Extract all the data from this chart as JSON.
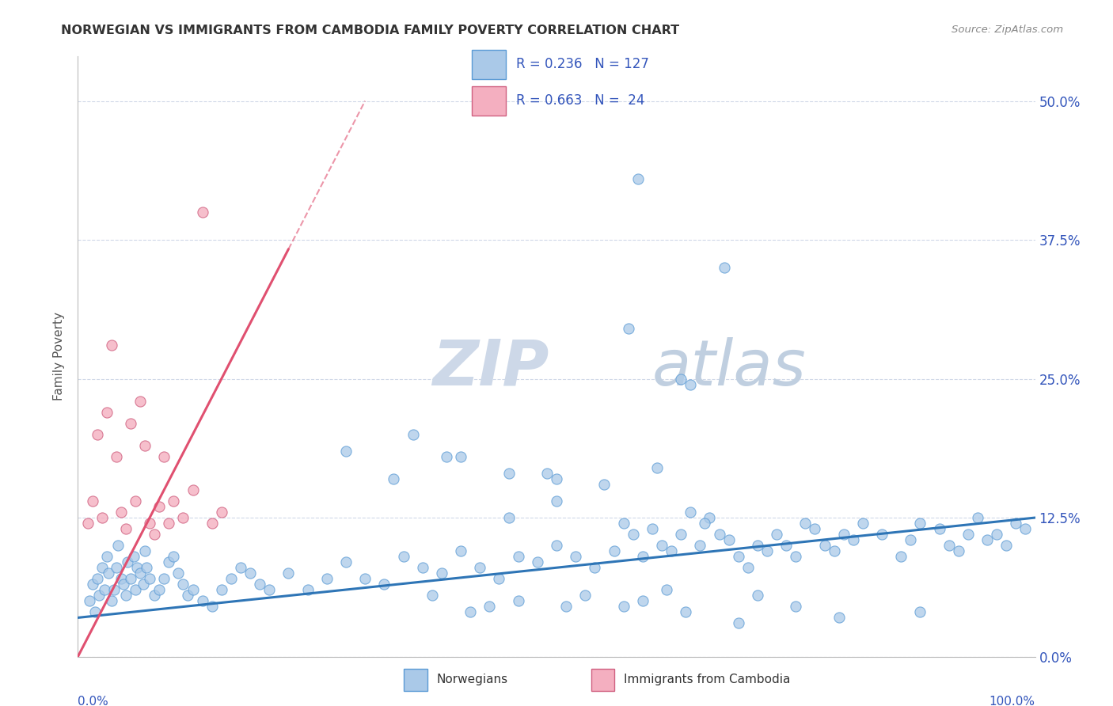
{
  "title": "NORWEGIAN VS IMMIGRANTS FROM CAMBODIA FAMILY POVERTY CORRELATION CHART",
  "source": "Source: ZipAtlas.com",
  "ylabel": "Family Poverty",
  "ytick_vals": [
    0,
    12.5,
    25.0,
    37.5,
    50.0
  ],
  "ytick_labels": [
    "0.0%",
    "12.5%",
    "25.0%",
    "37.5%",
    "50.0%"
  ],
  "xlim": [
    0,
    100
  ],
  "ylim": [
    0,
    54
  ],
  "color_norwegian": "#aac9e8",
  "color_norwegian_edge": "#5b9bd5",
  "color_cambodia": "#f4afc0",
  "color_cambodia_edge": "#d06080",
  "color_line_norwegian": "#2e75b6",
  "color_line_cambodia": "#e05070",
  "color_grid": "#d0d8e8",
  "color_title": "#333333",
  "color_source": "#888888",
  "color_legend_text_rn": "#3355bb",
  "color_ytick": "#3355bb",
  "watermark_zip_color": "#cdd8e8",
  "watermark_atlas_color": "#c0cfe0",
  "nor_line_x0": 0,
  "nor_line_x1": 100,
  "nor_line_y0": 3.5,
  "nor_line_y1": 12.5,
  "cam_line_x0": 0,
  "cam_line_x1": 30,
  "cam_line_y0": 0,
  "cam_line_y1": 50,
  "cam_line_solid_x1": 22,
  "cam_line_solid_y1": 37,
  "nor_x": [
    1.2,
    1.5,
    1.8,
    2.0,
    2.2,
    2.5,
    2.8,
    3.0,
    3.2,
    3.5,
    3.8,
    4.0,
    4.2,
    4.5,
    4.8,
    5.0,
    5.2,
    5.5,
    5.8,
    6.0,
    6.2,
    6.5,
    6.8,
    7.0,
    7.2,
    7.5,
    8.0,
    8.5,
    9.0,
    9.5,
    10.0,
    10.5,
    11.0,
    11.5,
    12.0,
    13.0,
    14.0,
    15.0,
    16.0,
    17.0,
    18.0,
    19.0,
    20.0,
    22.0,
    24.0,
    26.0,
    28.0,
    30.0,
    32.0,
    34.0,
    36.0,
    38.0,
    40.0,
    42.0,
    44.0,
    46.0,
    48.0,
    50.0,
    52.0,
    54.0,
    56.0,
    57.0,
    58.0,
    59.0,
    60.0,
    61.0,
    62.0,
    63.0,
    64.0,
    65.0,
    66.0,
    67.0,
    68.0,
    69.0,
    70.0,
    71.0,
    72.0,
    73.0,
    74.0,
    75.0,
    76.0,
    77.0,
    78.0,
    79.0,
    80.0,
    81.0,
    82.0,
    84.0,
    86.0,
    87.0,
    88.0,
    90.0,
    91.0,
    92.0,
    93.0,
    94.0,
    95.0,
    96.0,
    97.0,
    98.0,
    99.0,
    45.0,
    50.0,
    55.0,
    60.5,
    65.5,
    28.0,
    35.0,
    40.0,
    45.0,
    50.0,
    33.0,
    37.0,
    41.0,
    43.0,
    46.0,
    51.0,
    53.0,
    57.0,
    59.0,
    61.5,
    63.5,
    69.0,
    71.0,
    75.0,
    79.5,
    88.0
  ],
  "nor_y": [
    5.0,
    6.5,
    4.0,
    7.0,
    5.5,
    8.0,
    6.0,
    9.0,
    7.5,
    5.0,
    6.0,
    8.0,
    10.0,
    7.0,
    6.5,
    5.5,
    8.5,
    7.0,
    9.0,
    6.0,
    8.0,
    7.5,
    6.5,
    9.5,
    8.0,
    7.0,
    5.5,
    6.0,
    7.0,
    8.5,
    9.0,
    7.5,
    6.5,
    5.5,
    6.0,
    5.0,
    4.5,
    6.0,
    7.0,
    8.0,
    7.5,
    6.5,
    6.0,
    7.5,
    6.0,
    7.0,
    8.5,
    7.0,
    6.5,
    9.0,
    8.0,
    7.5,
    9.5,
    8.0,
    7.0,
    9.0,
    8.5,
    10.0,
    9.0,
    8.0,
    9.5,
    12.0,
    11.0,
    9.0,
    11.5,
    10.0,
    9.5,
    11.0,
    13.0,
    10.0,
    12.5,
    11.0,
    10.5,
    9.0,
    8.0,
    10.0,
    9.5,
    11.0,
    10.0,
    9.0,
    12.0,
    11.5,
    10.0,
    9.5,
    11.0,
    10.5,
    12.0,
    11.0,
    9.0,
    10.5,
    12.0,
    11.5,
    10.0,
    9.5,
    11.0,
    12.5,
    10.5,
    11.0,
    10.0,
    12.0,
    11.5,
    12.5,
    16.0,
    15.5,
    17.0,
    12.0,
    18.5,
    20.0,
    18.0,
    16.5,
    14.0,
    16.0,
    5.5,
    4.0,
    4.5,
    5.0,
    4.5,
    5.5,
    4.5,
    5.0,
    6.0,
    4.0,
    3.0,
    5.5,
    4.5,
    3.5,
    4.0
  ],
  "cam_x": [
    1.0,
    1.5,
    2.0,
    2.5,
    3.0,
    3.5,
    4.0,
    4.5,
    5.0,
    5.5,
    6.0,
    6.5,
    7.0,
    7.5,
    8.0,
    8.5,
    9.0,
    9.5,
    10.0,
    11.0,
    12.0,
    13.0,
    14.0,
    15.0
  ],
  "cam_y": [
    12.0,
    14.0,
    20.0,
    12.5,
    22.0,
    28.0,
    18.0,
    13.0,
    11.5,
    21.0,
    14.0,
    23.0,
    19.0,
    12.0,
    11.0,
    13.5,
    18.0,
    12.0,
    14.0,
    12.5,
    15.0,
    40.0,
    12.0,
    13.0
  ]
}
